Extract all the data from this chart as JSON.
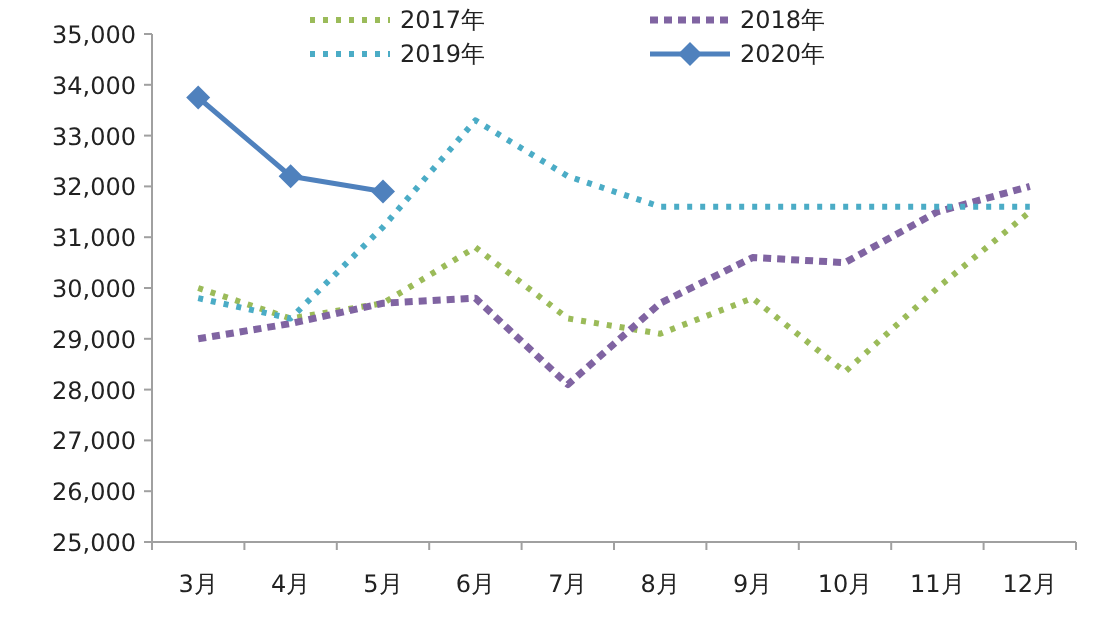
{
  "chart_data": {
    "type": "line",
    "categories": [
      "3月",
      "4月",
      "5月",
      "6月",
      "7月",
      "8月",
      "9月",
      "10月",
      "11月",
      "12月"
    ],
    "series": [
      {
        "name": "2017年",
        "color": "#9bbb59",
        "line_style": "dotted",
        "marker": "none",
        "values": [
          30000,
          29400,
          29700,
          30800,
          29400,
          29100,
          29800,
          28350,
          30000,
          31500
        ]
      },
      {
        "name": "2018年",
        "color": "#8064a2",
        "line_style": "dashed",
        "marker": "none",
        "values": [
          29000,
          29300,
          29700,
          29800,
          28100,
          29700,
          30600,
          30500,
          31500,
          32000
        ]
      },
      {
        "name": "2019年",
        "color": "#4bacc6",
        "line_style": "dotted",
        "marker": "none",
        "values": [
          29800,
          29400,
          31200,
          33300,
          32200,
          31600,
          31600,
          31600,
          31600,
          31600
        ]
      },
      {
        "name": "2020年",
        "color": "#4f81bd",
        "line_style": "solid",
        "marker": "diamond",
        "values": [
          33750,
          32200,
          31900,
          null,
          null,
          null,
          null,
          null,
          null,
          null
        ]
      }
    ],
    "ylim": [
      25000,
      35000
    ],
    "yticks": [
      {
        "value": 25000,
        "label": "25,000"
      },
      {
        "value": 26000,
        "label": "26,000"
      },
      {
        "value": 27000,
        "label": "27,000"
      },
      {
        "value": 28000,
        "label": "28,000"
      },
      {
        "value": 29000,
        "label": "29,000"
      },
      {
        "value": 30000,
        "label": "30,000"
      },
      {
        "value": 31000,
        "label": "31,000"
      },
      {
        "value": 32000,
        "label": "32,000"
      },
      {
        "value": 33000,
        "label": "33,000"
      },
      {
        "value": 34000,
        "label": "34,000"
      },
      {
        "value": 35000,
        "label": "35,000"
      }
    ],
    "grid": false,
    "legend": "top"
  }
}
